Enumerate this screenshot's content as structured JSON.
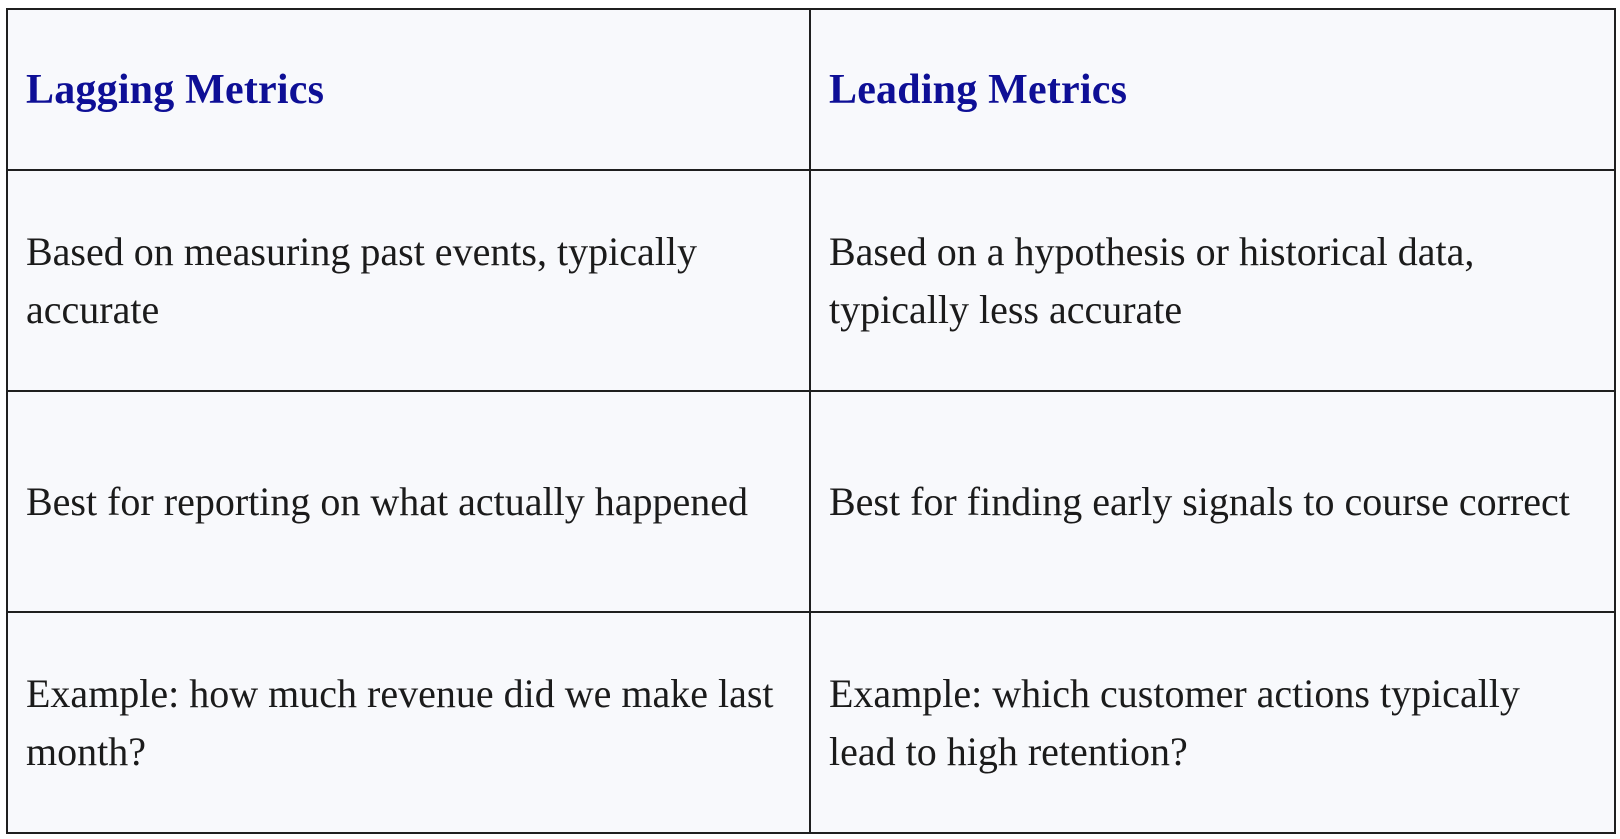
{
  "table": {
    "headers": [
      "Lagging Metrics",
      "Leading Metrics"
    ],
    "rows": [
      [
        "Based on measuring past events, typically accurate",
        "Based on a hypothesis or historical data, typically less accurate"
      ],
      [
        "Best for reporting on what actually happened",
        "Best for finding early signals to course correct"
      ],
      [
        "Example: how much revenue did we make last month?",
        "Example: which customer actions typically lead to high retention?"
      ]
    ]
  },
  "colors": {
    "header_text": "#0e0f96",
    "body_text": "#1b1b1b",
    "cell_background": "#f8f9fc",
    "border": "#1f1f1f"
  }
}
